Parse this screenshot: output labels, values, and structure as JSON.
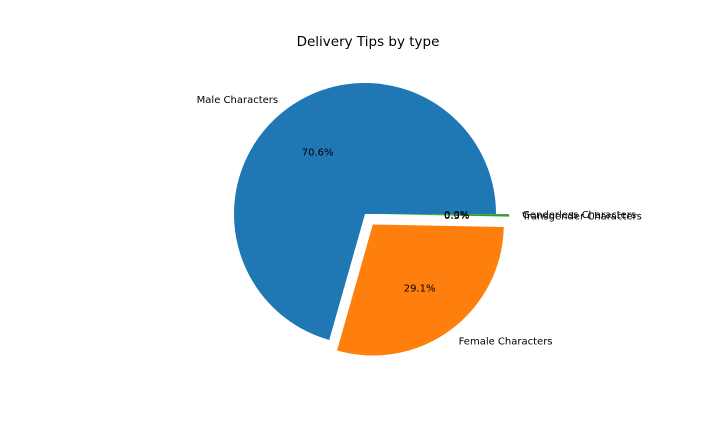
{
  "chart_data": {
    "type": "pie",
    "title": "Delivery Tips by type",
    "categories": [
      "Male Characters",
      "Female Characters",
      "Transgender Characters",
      "Genderless Characters"
    ],
    "values": [
      70.6,
      29.1,
      0.3,
      0.0
    ],
    "value_labels": [
      "70.6%",
      "29.1%",
      "0.3%",
      "0.0%"
    ],
    "colors": [
      "#1f77b4",
      "#ff7f0e",
      "#2ca02c",
      "#d62728"
    ],
    "explode": [
      0.0,
      0.1,
      0.1,
      0.1
    ],
    "start_angle_deg": 0,
    "direction": "counterclockwise",
    "legend": "none"
  }
}
